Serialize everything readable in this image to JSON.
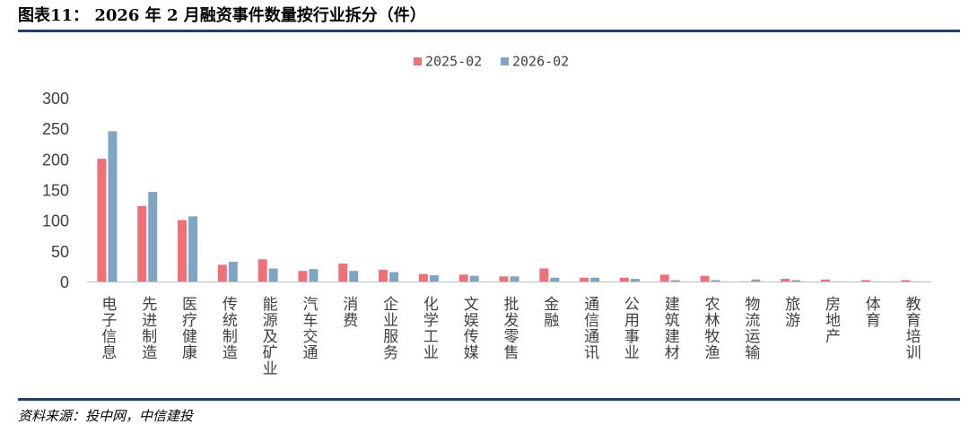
{
  "figure_title": "图表11： 2026 年 2 月融资事件数量按行业拆分（件）",
  "source_text": "资料来源：投中网，中信建投",
  "colors": {
    "series_2025": "#f07078",
    "series_2026": "#7ea6c4",
    "rule": "#1f3f73",
    "axis_line": "#bfbfbf",
    "text": "#404040"
  },
  "chart_data": {
    "type": "bar",
    "title": "",
    "xlabel": "",
    "ylabel": "",
    "ylim": [
      0,
      300
    ],
    "yticks": [
      0,
      50,
      100,
      150,
      200,
      250,
      300
    ],
    "grid": false,
    "legend_position": "top-center",
    "categories": [
      "电子信息",
      "先进制造",
      "医疗健康",
      "传统制造",
      "能源及矿业",
      "汽车交通",
      "消费",
      "企业服务",
      "化学工业",
      "文娱传媒",
      "批发零售",
      "金融",
      "通信通讯",
      "公用事业",
      "建筑建材",
      "农林牧渔",
      "物流运输",
      "旅游",
      "房地产",
      "体育",
      "教育培训"
    ],
    "series": [
      {
        "name": "2025-02",
        "color": "#f07078",
        "values": [
          201,
          124,
          101,
          28,
          37,
          18,
          30,
          20,
          13,
          12,
          9,
          22,
          7,
          7,
          12,
          10,
          1,
          5,
          4,
          3,
          3
        ]
      },
      {
        "name": "2026-02",
        "color": "#7ea6c4",
        "values": [
          246,
          147,
          107,
          33,
          22,
          21,
          18,
          16,
          11,
          10,
          9,
          7,
          7,
          5,
          3,
          3,
          4,
          3,
          1,
          1,
          1
        ]
      }
    ]
  }
}
